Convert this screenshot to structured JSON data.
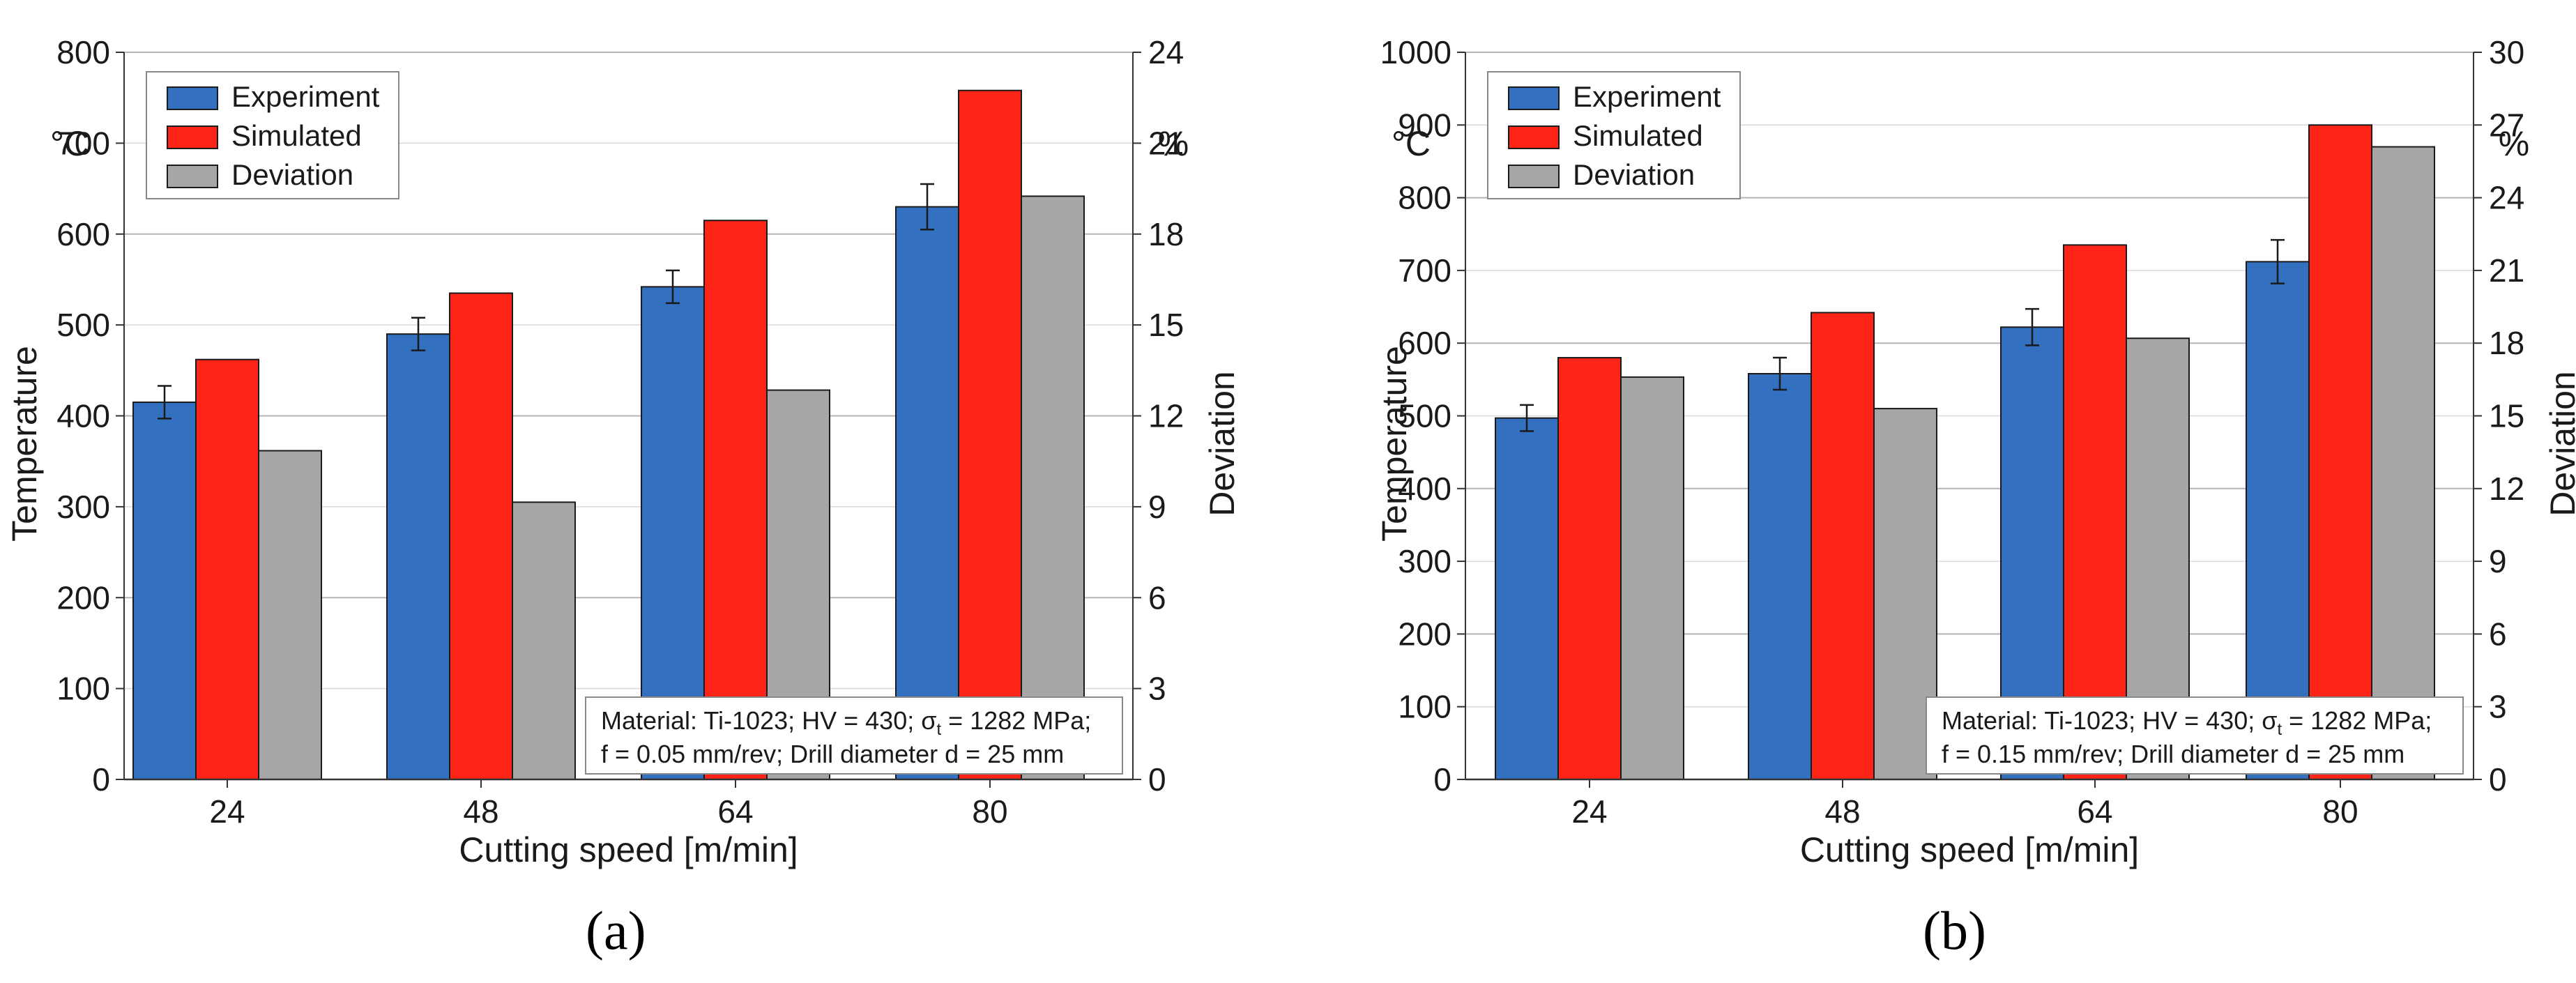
{
  "chart_data": [
    {
      "type": "bar",
      "panel": "(a)",
      "categories": [
        "24",
        "48",
        "64",
        "80"
      ],
      "xlabel": "Cutting speed [m/min]",
      "ylabel": "Temperature",
      "ylabel_unit": "°C",
      "ylim": [
        0,
        800
      ],
      "yticks": [
        "0",
        "100",
        "200",
        "300",
        "400",
        "500",
        "600",
        "700",
        "800"
      ],
      "y2label": "Deviation",
      "y2label_unit": "%",
      "y2lim": [
        0,
        24
      ],
      "y2ticks": [
        "0",
        "3",
        "6",
        "9",
        "12",
        "15",
        "18",
        "21",
        "24"
      ],
      "series": [
        {
          "name": "Experiment",
          "axis": "left",
          "color": "#3370C0",
          "values": [
            415,
            490,
            542,
            630
          ],
          "errors": [
            18,
            18,
            18,
            25
          ]
        },
        {
          "name": "Simulated",
          "axis": "left",
          "color": "#FF2418",
          "values": [
            462,
            535,
            615,
            758
          ]
        },
        {
          "name": "Deviation",
          "axis": "right",
          "color": "#A6A6A6",
          "values": [
            10.85,
            9.15,
            12.85,
            19.25
          ]
        }
      ],
      "legend": [
        "Experiment",
        "Simulated",
        "Deviation"
      ],
      "legend_position": "top-left",
      "annotation": {
        "line1_prefix": "Material: Ti-1023; HV = 430; ",
        "sigma": "σ",
        "sigma_sub": "t",
        "line1_suffix": " = 1282 MPa;",
        "line2": "f = 0.05 mm/rev; Drill diameter d = 25 mm"
      }
    },
    {
      "type": "bar",
      "panel": "(b)",
      "categories": [
        "24",
        "48",
        "64",
        "80"
      ],
      "xlabel": "Cutting speed [m/min]",
      "ylabel": "Temperature",
      "ylabel_unit": "°C",
      "ylim": [
        0,
        1000
      ],
      "yticks": [
        "0",
        "100",
        "200",
        "300",
        "400",
        "500",
        "600",
        "700",
        "800",
        "900",
        "1000"
      ],
      "y2label": "Deviation",
      "y2label_unit": "%",
      "y2lim": [
        0,
        30
      ],
      "y2ticks": [
        "0",
        "3",
        "6",
        "9",
        "12",
        "15",
        "18",
        "21",
        "24",
        "27",
        "30"
      ],
      "series": [
        {
          "name": "Experiment",
          "axis": "left",
          "color": "#3370C0",
          "values": [
            497,
            558,
            622,
            712
          ],
          "errors": [
            18,
            22,
            25,
            30
          ]
        },
        {
          "name": "Simulated",
          "axis": "left",
          "color": "#FF2418",
          "values": [
            580,
            642,
            735,
            900
          ]
        },
        {
          "name": "Deviation",
          "axis": "right",
          "color": "#A6A6A6",
          "values": [
            16.6,
            15.3,
            18.2,
            26.1
          ]
        }
      ],
      "legend": [
        "Experiment",
        "Simulated",
        "Deviation"
      ],
      "legend_position": "top-left",
      "annotation": {
        "line1_prefix": "Material: Ti-1023; HV = 430; ",
        "sigma": "σ",
        "sigma_sub": "t",
        "line1_suffix": " = 1282 MPa;",
        "line2": "f = 0.15 mm/rev; Drill diameter d = 25 mm"
      }
    }
  ]
}
